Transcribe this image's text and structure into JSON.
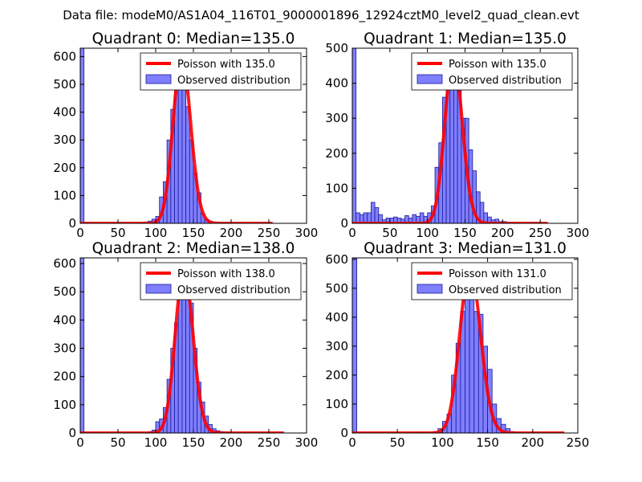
{
  "suptitle": "Data file: modeM0/AS1A04_116T01_9000001896_12924cztM0_level2_quad_clean.evt",
  "colors": {
    "bar_fill": "#7f7fff",
    "bar_edge": "#1a1a99",
    "poisson_line": "#ff0000",
    "legend_edge": "#000000"
  },
  "chart_data": [
    {
      "type": "bar",
      "title": "Quadrant 0: Median=135.0",
      "xlim": [
        0,
        300
      ],
      "ylim": [
        0,
        630
      ],
      "xticks": [
        0,
        50,
        100,
        150,
        200,
        250,
        300
      ],
      "yticks": [
        0,
        100,
        200,
        300,
        400,
        500,
        600
      ],
      "bin_width": 5,
      "bins": [
        [
          0,
          630
        ],
        [
          80,
          2
        ],
        [
          85,
          5
        ],
        [
          90,
          8
        ],
        [
          95,
          15
        ],
        [
          100,
          25
        ],
        [
          105,
          95
        ],
        [
          110,
          150
        ],
        [
          115,
          300
        ],
        [
          120,
          410
        ],
        [
          125,
          580
        ],
        [
          130,
          600
        ],
        [
          135,
          530
        ],
        [
          140,
          420
        ],
        [
          145,
          300
        ],
        [
          150,
          180
        ],
        [
          155,
          110
        ],
        [
          160,
          35
        ],
        [
          165,
          15
        ],
        [
          170,
          8
        ],
        [
          175,
          5
        ],
        [
          180,
          3
        ],
        [
          185,
          2
        ],
        [
          190,
          1
        ],
        [
          195,
          1
        ]
      ],
      "poisson": {
        "mean": 135.0,
        "scale": 600,
        "x_range": [
          0,
          255
        ]
      },
      "legend": {
        "line_label": "Poisson with 135.0",
        "bar_label": "Observed distribution",
        "loc": "upper right"
      }
    },
    {
      "type": "bar",
      "title": "Quadrant 1: Median=135.0",
      "xlim": [
        0,
        300
      ],
      "ylim": [
        0,
        500
      ],
      "xticks": [
        0,
        50,
        100,
        150,
        200,
        250,
        300
      ],
      "yticks": [
        0,
        100,
        200,
        300,
        400,
        500
      ],
      "bin_width": 5,
      "bins": [
        [
          0,
          500
        ],
        [
          5,
          30
        ],
        [
          10,
          25
        ],
        [
          15,
          30
        ],
        [
          20,
          30
        ],
        [
          25,
          60
        ],
        [
          30,
          45
        ],
        [
          35,
          25
        ],
        [
          40,
          10
        ],
        [
          45,
          15
        ],
        [
          50,
          15
        ],
        [
          55,
          18
        ],
        [
          60,
          15
        ],
        [
          65,
          12
        ],
        [
          70,
          22
        ],
        [
          75,
          15
        ],
        [
          80,
          25
        ],
        [
          85,
          20
        ],
        [
          90,
          30
        ],
        [
          95,
          20
        ],
        [
          100,
          30
        ],
        [
          105,
          50
        ],
        [
          110,
          160
        ],
        [
          115,
          230
        ],
        [
          120,
          360
        ],
        [
          125,
          410
        ],
        [
          130,
          450
        ],
        [
          135,
          470
        ],
        [
          140,
          390
        ],
        [
          145,
          300
        ],
        [
          150,
          300
        ],
        [
          155,
          210
        ],
        [
          160,
          150
        ],
        [
          165,
          90
        ],
        [
          170,
          60
        ],
        [
          175,
          30
        ],
        [
          180,
          18
        ],
        [
          185,
          10
        ],
        [
          190,
          12
        ],
        [
          195,
          5
        ],
        [
          200,
          5
        ],
        [
          205,
          3
        ],
        [
          210,
          2
        ],
        [
          215,
          1
        ]
      ],
      "poisson": {
        "mean": 135.0,
        "scale": 475,
        "x_range": [
          0,
          260
        ]
      },
      "legend": {
        "line_label": "Poisson with 135.0",
        "bar_label": "Observed distribution",
        "loc": "upper right"
      }
    },
    {
      "type": "bar",
      "title": "Quadrant 2: Median=138.0",
      "xlim": [
        0,
        300
      ],
      "ylim": [
        0,
        620
      ],
      "xticks": [
        0,
        50,
        100,
        150,
        200,
        250,
        300
      ],
      "yticks": [
        0,
        100,
        200,
        300,
        400,
        500,
        600
      ],
      "bin_width": 5,
      "bins": [
        [
          0,
          620
        ],
        [
          85,
          2
        ],
        [
          90,
          5
        ],
        [
          95,
          10
        ],
        [
          100,
          40
        ],
        [
          105,
          50
        ],
        [
          110,
          90
        ],
        [
          115,
          190
        ],
        [
          120,
          300
        ],
        [
          125,
          390
        ],
        [
          130,
          510
        ],
        [
          135,
          580
        ],
        [
          140,
          540
        ],
        [
          145,
          460
        ],
        [
          150,
          300
        ],
        [
          155,
          180
        ],
        [
          160,
          110
        ],
        [
          165,
          60
        ],
        [
          170,
          30
        ],
        [
          175,
          15
        ],
        [
          180,
          8
        ],
        [
          185,
          5
        ],
        [
          190,
          3
        ],
        [
          195,
          2
        ]
      ],
      "poisson": {
        "mean": 138.0,
        "scale": 580,
        "x_range": [
          0,
          270
        ]
      },
      "legend": {
        "line_label": "Poisson with 138.0",
        "bar_label": "Observed distribution",
        "loc": "upper right"
      }
    },
    {
      "type": "bar",
      "title": "Quadrant 3: Median=131.0",
      "xlim": [
        0,
        250
      ],
      "ylim": [
        0,
        605
      ],
      "xticks": [
        0,
        50,
        100,
        150,
        200,
        250
      ],
      "yticks": [
        0,
        100,
        200,
        300,
        400,
        500,
        600
      ],
      "bin_width": 5,
      "bins": [
        [
          0,
          605
        ],
        [
          75,
          2
        ],
        [
          90,
          5
        ],
        [
          95,
          15
        ],
        [
          100,
          40
        ],
        [
          105,
          65
        ],
        [
          110,
          200
        ],
        [
          115,
          310
        ],
        [
          120,
          420
        ],
        [
          125,
          570
        ],
        [
          130,
          520
        ],
        [
          135,
          420
        ],
        [
          140,
          410
        ],
        [
          145,
          300
        ],
        [
          150,
          220
        ],
        [
          155,
          100
        ],
        [
          160,
          50
        ],
        [
          165,
          30
        ],
        [
          170,
          15
        ],
        [
          175,
          5
        ],
        [
          180,
          3
        ],
        [
          185,
          2
        ]
      ],
      "poisson": {
        "mean": 131.0,
        "scale": 570,
        "x_range": [
          0,
          235
        ]
      },
      "legend": {
        "line_label": "Poisson with 131.0",
        "bar_label": "Observed distribution",
        "loc": "upper right"
      }
    }
  ]
}
